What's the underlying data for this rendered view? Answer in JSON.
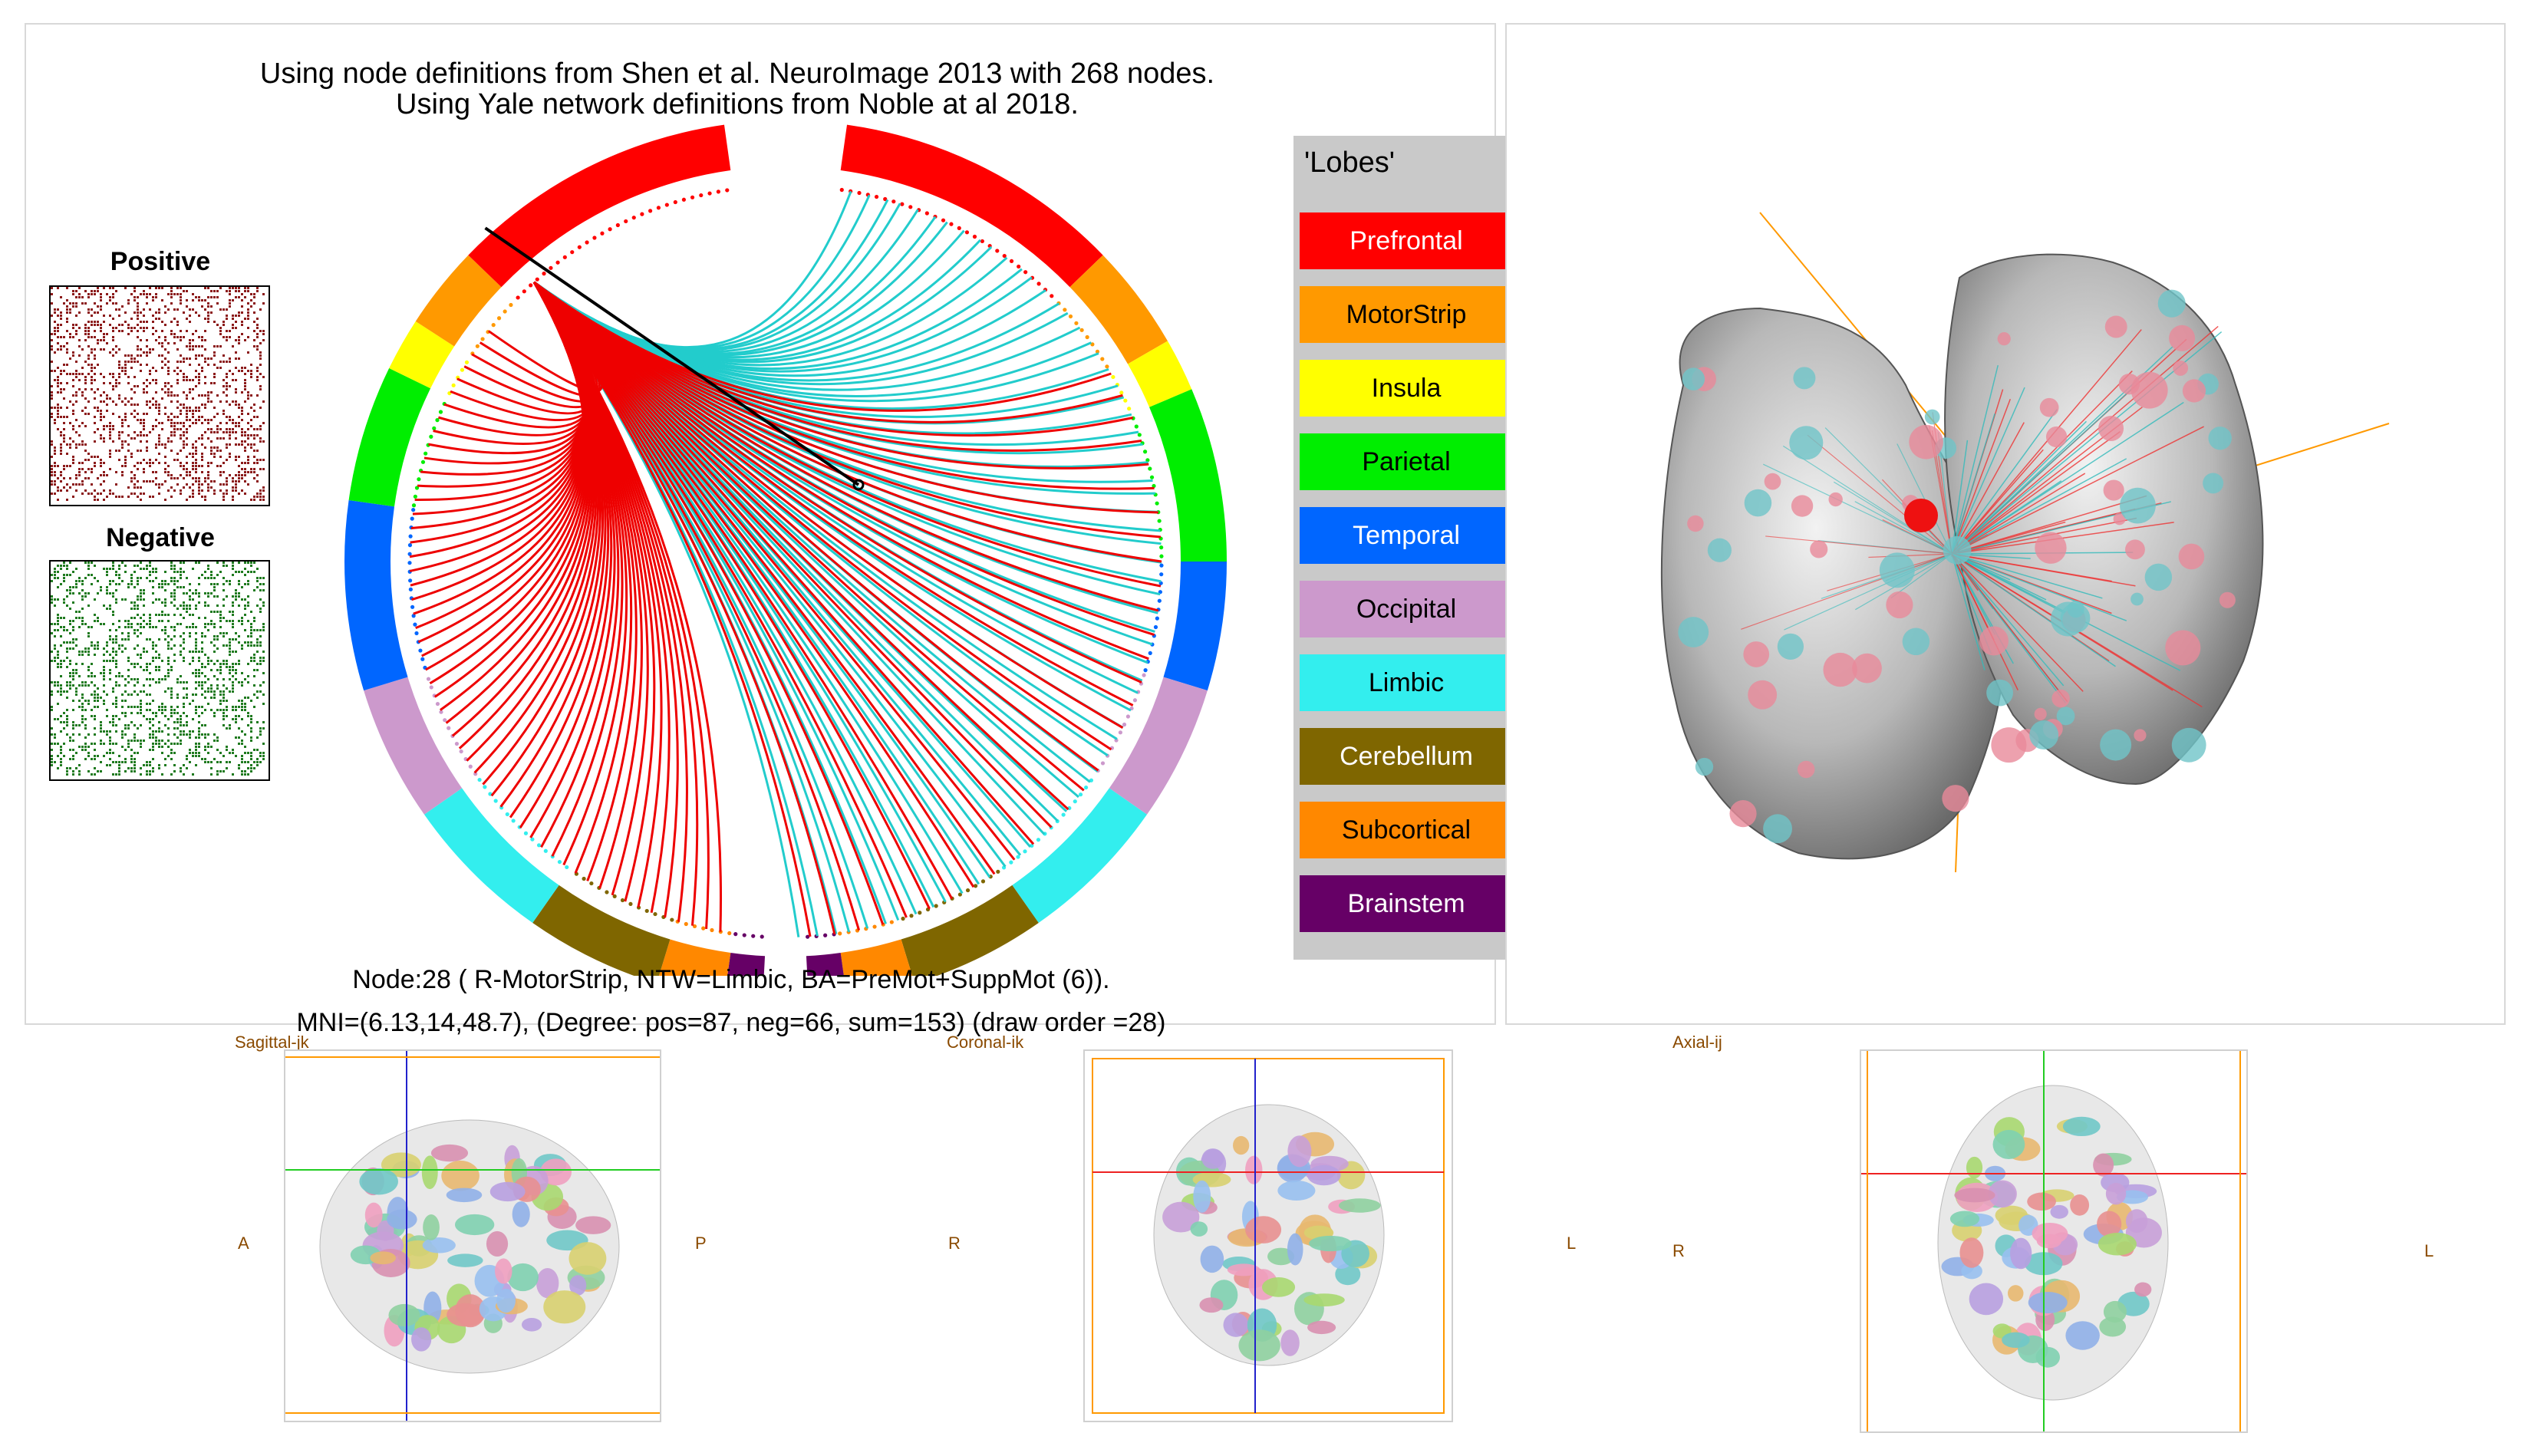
{
  "header": {
    "line1": "Using node definitions from Shen et al. NeuroImage 2013 with 268 nodes.",
    "line2": "Using Yale network definitions from Noble at al 2018."
  },
  "matrices": {
    "positive_label": "Positive",
    "negative_label": "Negative",
    "positive_color": "#8b1a1a",
    "negative_color": "#1f7a1f"
  },
  "legend": {
    "title": "'Lobes'",
    "items": [
      {
        "label": "Prefrontal",
        "color": "#ff0000",
        "text_color": "#ffffff"
      },
      {
        "label": "MotorStrip",
        "color": "#ff9900",
        "text_color": "#000000"
      },
      {
        "label": "Insula",
        "color": "#ffff00",
        "text_color": "#000000"
      },
      {
        "label": "Parietal",
        "color": "#00ee00",
        "text_color": "#000000"
      },
      {
        "label": "Temporal",
        "color": "#0066ff",
        "text_color": "#ffffff"
      },
      {
        "label": "Occipital",
        "color": "#cc99cc",
        "text_color": "#000000"
      },
      {
        "label": "Limbic",
        "color": "#33eeee",
        "text_color": "#000000"
      },
      {
        "label": "Cerebellum",
        "color": "#7f6600",
        "text_color": "#ffffff"
      },
      {
        "label": "Subcortical",
        "color": "#ff8800",
        "text_color": "#000000"
      },
      {
        "label": "Brainstem",
        "color": "#660066",
        "text_color": "#ffffff"
      }
    ]
  },
  "node_info": {
    "line1": "Node:28 ( R-MotorStrip, NTW=Limbic, BA=PreMot+SuppMot (6)).",
    "line2": "MNI=(6.13,14,48.7), (Degree: pos=87, neg=66, sum=153)  (draw order =28)"
  },
  "connections": {
    "positive_color": "#ee0000",
    "negative_color": "#22cccc",
    "positive_degree": 87,
    "negative_degree": 66
  },
  "slices": {
    "sagittal": {
      "label": "Sagittal-jk",
      "left": "A",
      "right": "P"
    },
    "coronal": {
      "label": "Coronal-ik",
      "left": "R",
      "right": "L"
    },
    "axial": {
      "label": "Axial-ij",
      "left": "R",
      "right": "L"
    }
  }
}
